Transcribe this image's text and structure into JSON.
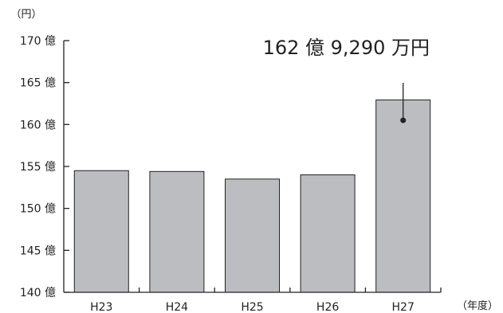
{
  "chart_data": {
    "type": "bar",
    "categories": [
      "H23",
      "H24",
      "H25",
      "H26",
      "H27"
    ],
    "values": [
      154.5,
      154.4,
      153.5,
      154.0,
      162.93
    ],
    "ylim": [
      140,
      170
    ],
    "yticks": [
      140,
      145,
      150,
      155,
      160,
      165,
      170
    ],
    "ytick_labels": [
      "140 億",
      "145 億",
      "150 億",
      "155 億",
      "160 億",
      "165 億",
      "170 億"
    ],
    "y_unit": "（円）",
    "x_unit": "（年度）",
    "annotation": {
      "text": "162 億 9,290 万円",
      "target_index": 4,
      "value": 160.5
    },
    "grid": false,
    "colors": {
      "bar_fill": "#bcbdc0",
      "bar_stroke": "#222222",
      "axis": "#222222",
      "text": "#222222"
    }
  }
}
